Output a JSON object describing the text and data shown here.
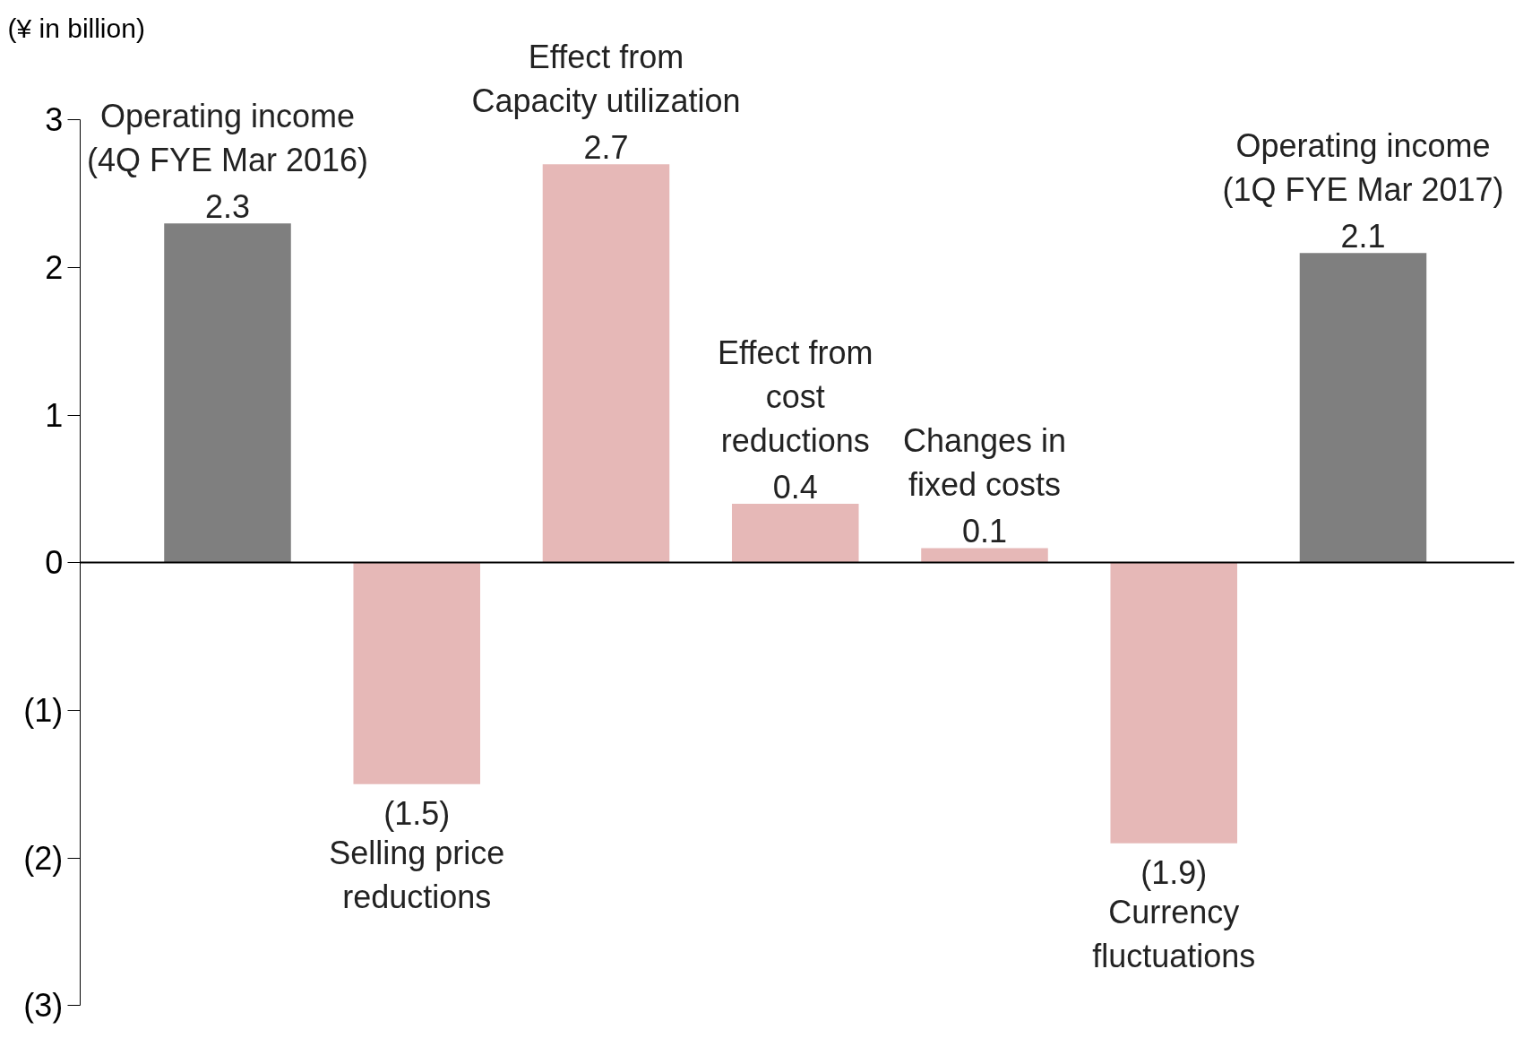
{
  "chart_data": {
    "type": "bar",
    "ylabel": "(¥ in billion)",
    "categories": [
      "Operating income\n(4Q FYE Mar 2016)",
      "Selling price\nreductions",
      "Effect from\nCapacity utilization",
      "Effect from\ncost\nreductions",
      "Changes in\nfixed costs",
      "Currency\nfluctuations",
      "Operating income\n(1Q FYE Mar 2017)"
    ],
    "values": [
      2.3,
      -1.5,
      2.7,
      0.4,
      0.1,
      -1.9,
      2.1
    ],
    "value_labels": [
      "2.3",
      "(1.5)",
      "2.7",
      "0.4",
      "0.1",
      "(1.9)",
      "2.1"
    ],
    "colors": [
      "#7f7f7f",
      "#e6b8b7",
      "#e6b8b7",
      "#e6b8b7",
      "#e6b8b7",
      "#e6b8b7",
      "#7f7f7f"
    ],
    "ylim": [
      -3,
      3
    ],
    "yticks": [
      {
        "value": 3,
        "label": "3"
      },
      {
        "value": 2,
        "label": "2"
      },
      {
        "value": 1,
        "label": "1"
      },
      {
        "value": 0,
        "label": "0"
      },
      {
        "value": -1,
        "label": "(1)"
      },
      {
        "value": -2,
        "label": "(2)"
      },
      {
        "value": -3,
        "label": "(3)"
      }
    ],
    "tick_labels": "y"
  }
}
